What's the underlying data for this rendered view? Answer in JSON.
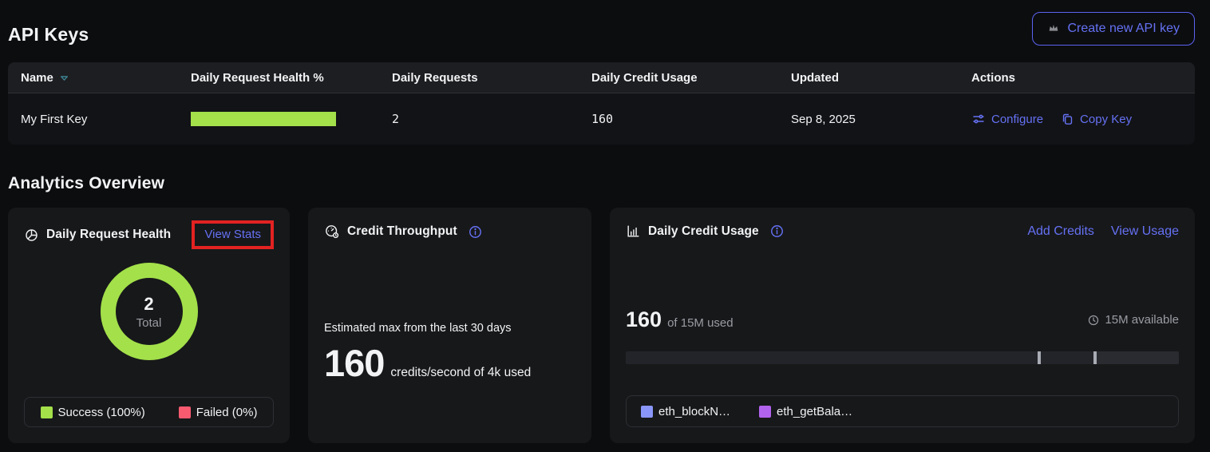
{
  "colors": {
    "page_bg": "#0c0d0f",
    "card_bg": "#17181a",
    "header_bg": "#1d1e21",
    "row_bg": "#121316",
    "border": "#2e2f34",
    "text": "#f2f3f5",
    "muted": "#9a9ca3",
    "indigo": "#5b63f2",
    "indigo_light": "#6571f4",
    "lime": "#a3e04a",
    "pink": "#f85a70",
    "teal": "#3b7f8e",
    "red_box": "#e32222",
    "bar_track": "#232429",
    "bar_tick": "#a9abb4"
  },
  "header": {
    "title": "API Keys",
    "create_button": "Create new API key"
  },
  "table": {
    "columns": [
      "Name",
      "Daily Request Health %",
      "Daily Requests",
      "Daily Credit Usage",
      "Updated",
      "Actions"
    ],
    "row": {
      "name": "My First Key",
      "health_pct": 100,
      "daily_requests": "2",
      "daily_credit_usage": "160",
      "updated": "Sep 8, 2025",
      "configure_label": "Configure",
      "copy_key_label": "Copy Key"
    }
  },
  "analytics": {
    "title": "Analytics Overview"
  },
  "cards": {
    "daily_request_health": {
      "title": "Daily Request Health",
      "view_stats_label": "View Stats",
      "chart_data": {
        "type": "pie",
        "total_value": "2",
        "total_label": "Total",
        "segments": [
          {
            "label": "Success",
            "pct": 100,
            "color": "#a3e04a"
          },
          {
            "label": "Failed",
            "pct": 0,
            "color": "#f85a70"
          }
        ]
      },
      "legend": [
        {
          "label": "Success (100%)",
          "color": "#a3e04a"
        },
        {
          "label": "Failed (0%)",
          "color": "#f85a70"
        }
      ]
    },
    "credit_throughput": {
      "title": "Credit Throughput",
      "subtitle": "Estimated max from the last 30 days",
      "value": "160",
      "value_suffix": "credits/second of 4k used"
    },
    "daily_credit_usage": {
      "title": "Daily Credit Usage",
      "add_credits_label": "Add Credits",
      "view_usage_label": "View Usage",
      "used_value": "160",
      "used_suffix": "of 15M used",
      "available_label": "15M available",
      "bar": {
        "ticks_pct": [
          74.5,
          84.5
        ]
      },
      "legend": [
        {
          "label": "eth_blockN…",
          "color": "#8a96f8"
        },
        {
          "label": "eth_getBala…",
          "color": "#b263ee"
        }
      ]
    }
  }
}
